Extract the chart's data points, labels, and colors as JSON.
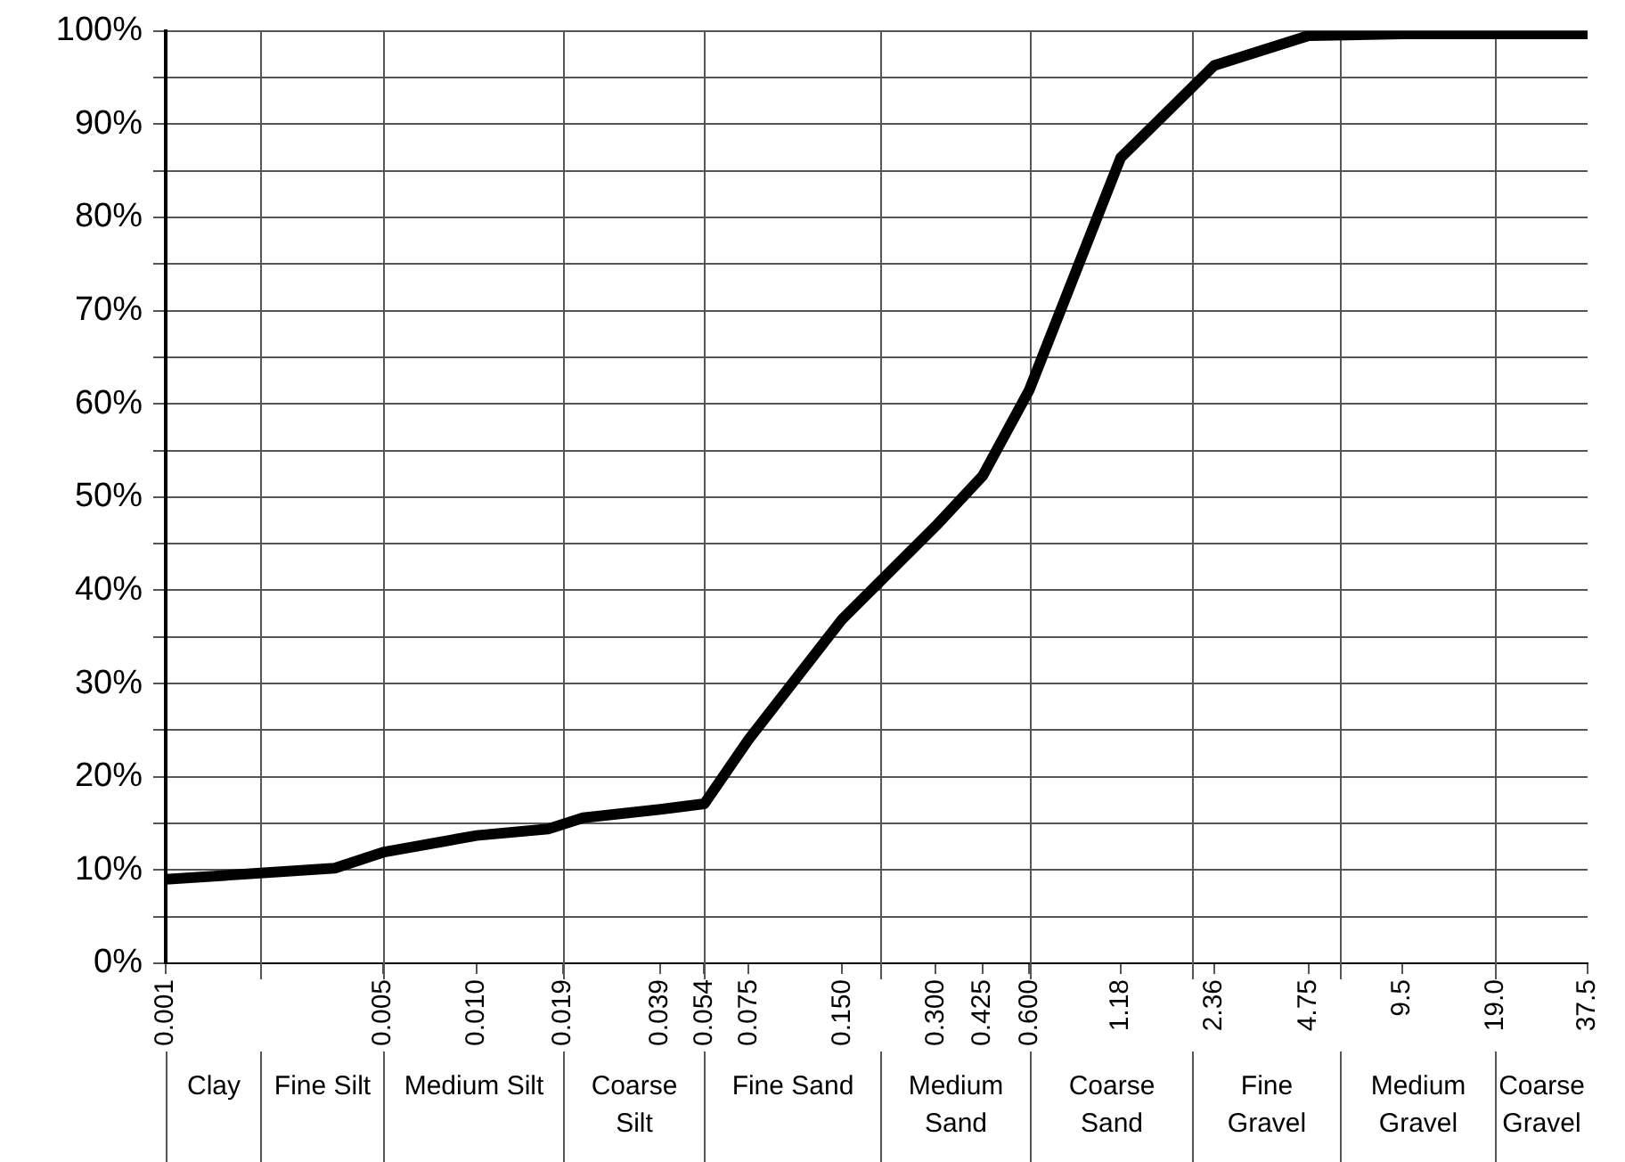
{
  "chart_data": {
    "type": "line",
    "x": [
      0.001,
      0.0035,
      0.005,
      0.01,
      0.017,
      0.022,
      0.039,
      0.054,
      0.075,
      0.15,
      0.3,
      0.425,
      0.6,
      1.18,
      2.36,
      4.75,
      9.5,
      19,
      37.5
    ],
    "series": [
      {
        "color": "#000000",
        "values": [
          9.0,
          10.2,
          11.9,
          13.7,
          14.4,
          15.6,
          16.5,
          17.1,
          24.0,
          36.9,
          46.9,
          52.3,
          61.5,
          86.4,
          96.3,
          99.5,
          99.7,
          99.7,
          99.7
        ]
      }
    ],
    "xlim": [
      0.001,
      37.5
    ],
    "xticks": [
      0.001,
      0.005,
      {
        "value": 0.01,
        "label": "0.010"
      },
      0.019,
      0.039,
      0.054,
      0.075,
      {
        "value": 0.15,
        "label": "0.150"
      },
      {
        "value": 0.3,
        "label": "0.300"
      },
      0.425,
      {
        "value": 0.6,
        "label": "0.600"
      },
      1.18,
      2.36,
      4.75,
      9.5,
      {
        "value": 19,
        "label": "19.0"
      },
      37.5
    ],
    "ylim": [
      0,
      100
    ],
    "yticks": [
      {
        "value": 0,
        "label": "0%"
      },
      {
        "value": 5,
        "label": null
      },
      {
        "value": 10,
        "label": "10%"
      },
      {
        "value": 15,
        "label": null
      },
      {
        "value": 20,
        "label": "20%"
      },
      {
        "value": 25,
        "label": null
      },
      {
        "value": 30,
        "label": "30%"
      },
      {
        "value": 35,
        "label": null
      },
      {
        "value": 40,
        "label": "40%"
      },
      {
        "value": 45,
        "label": null
      },
      {
        "value": 50,
        "label": "50%"
      },
      {
        "value": 55,
        "label": null
      },
      {
        "value": 60,
        "label": "60%"
      },
      {
        "value": 65,
        "label": null
      },
      {
        "value": 70,
        "label": "70%"
      },
      {
        "value": 75,
        "label": null
      },
      {
        "value": 80,
        "label": "80%"
      },
      {
        "value": 85,
        "label": null
      },
      {
        "value": 90,
        "label": "90%"
      },
      {
        "value": 95,
        "label": null
      },
      {
        "value": 100,
        "label": "100%"
      }
    ],
    "ref_lines": [
      {
        "axis": "x",
        "value": 0.002
      },
      {
        "axis": "x",
        "value": 0.005
      },
      {
        "axis": "x",
        "value": 0.019
      },
      {
        "axis": "x",
        "value": 0.054
      },
      {
        "axis": "x",
        "value": 0.2
      },
      {
        "axis": "x",
        "value": 0.6
      },
      {
        "axis": "x",
        "value": 2
      },
      {
        "axis": "x",
        "value": 6
      },
      {
        "axis": "x",
        "value": 19
      }
    ],
    "annotations": [
      "Clay",
      "Fine Silt",
      "Medium Silt",
      "Coarse Silt",
      "Fine Sand",
      "Medium Sand",
      "Coarse Sand",
      "Fine Gravel",
      "Medium Gravel",
      "Coarse Gravel"
    ],
    "log": "x",
    "grid": "y",
    "marker": "none",
    "line_style": "solid"
  }
}
